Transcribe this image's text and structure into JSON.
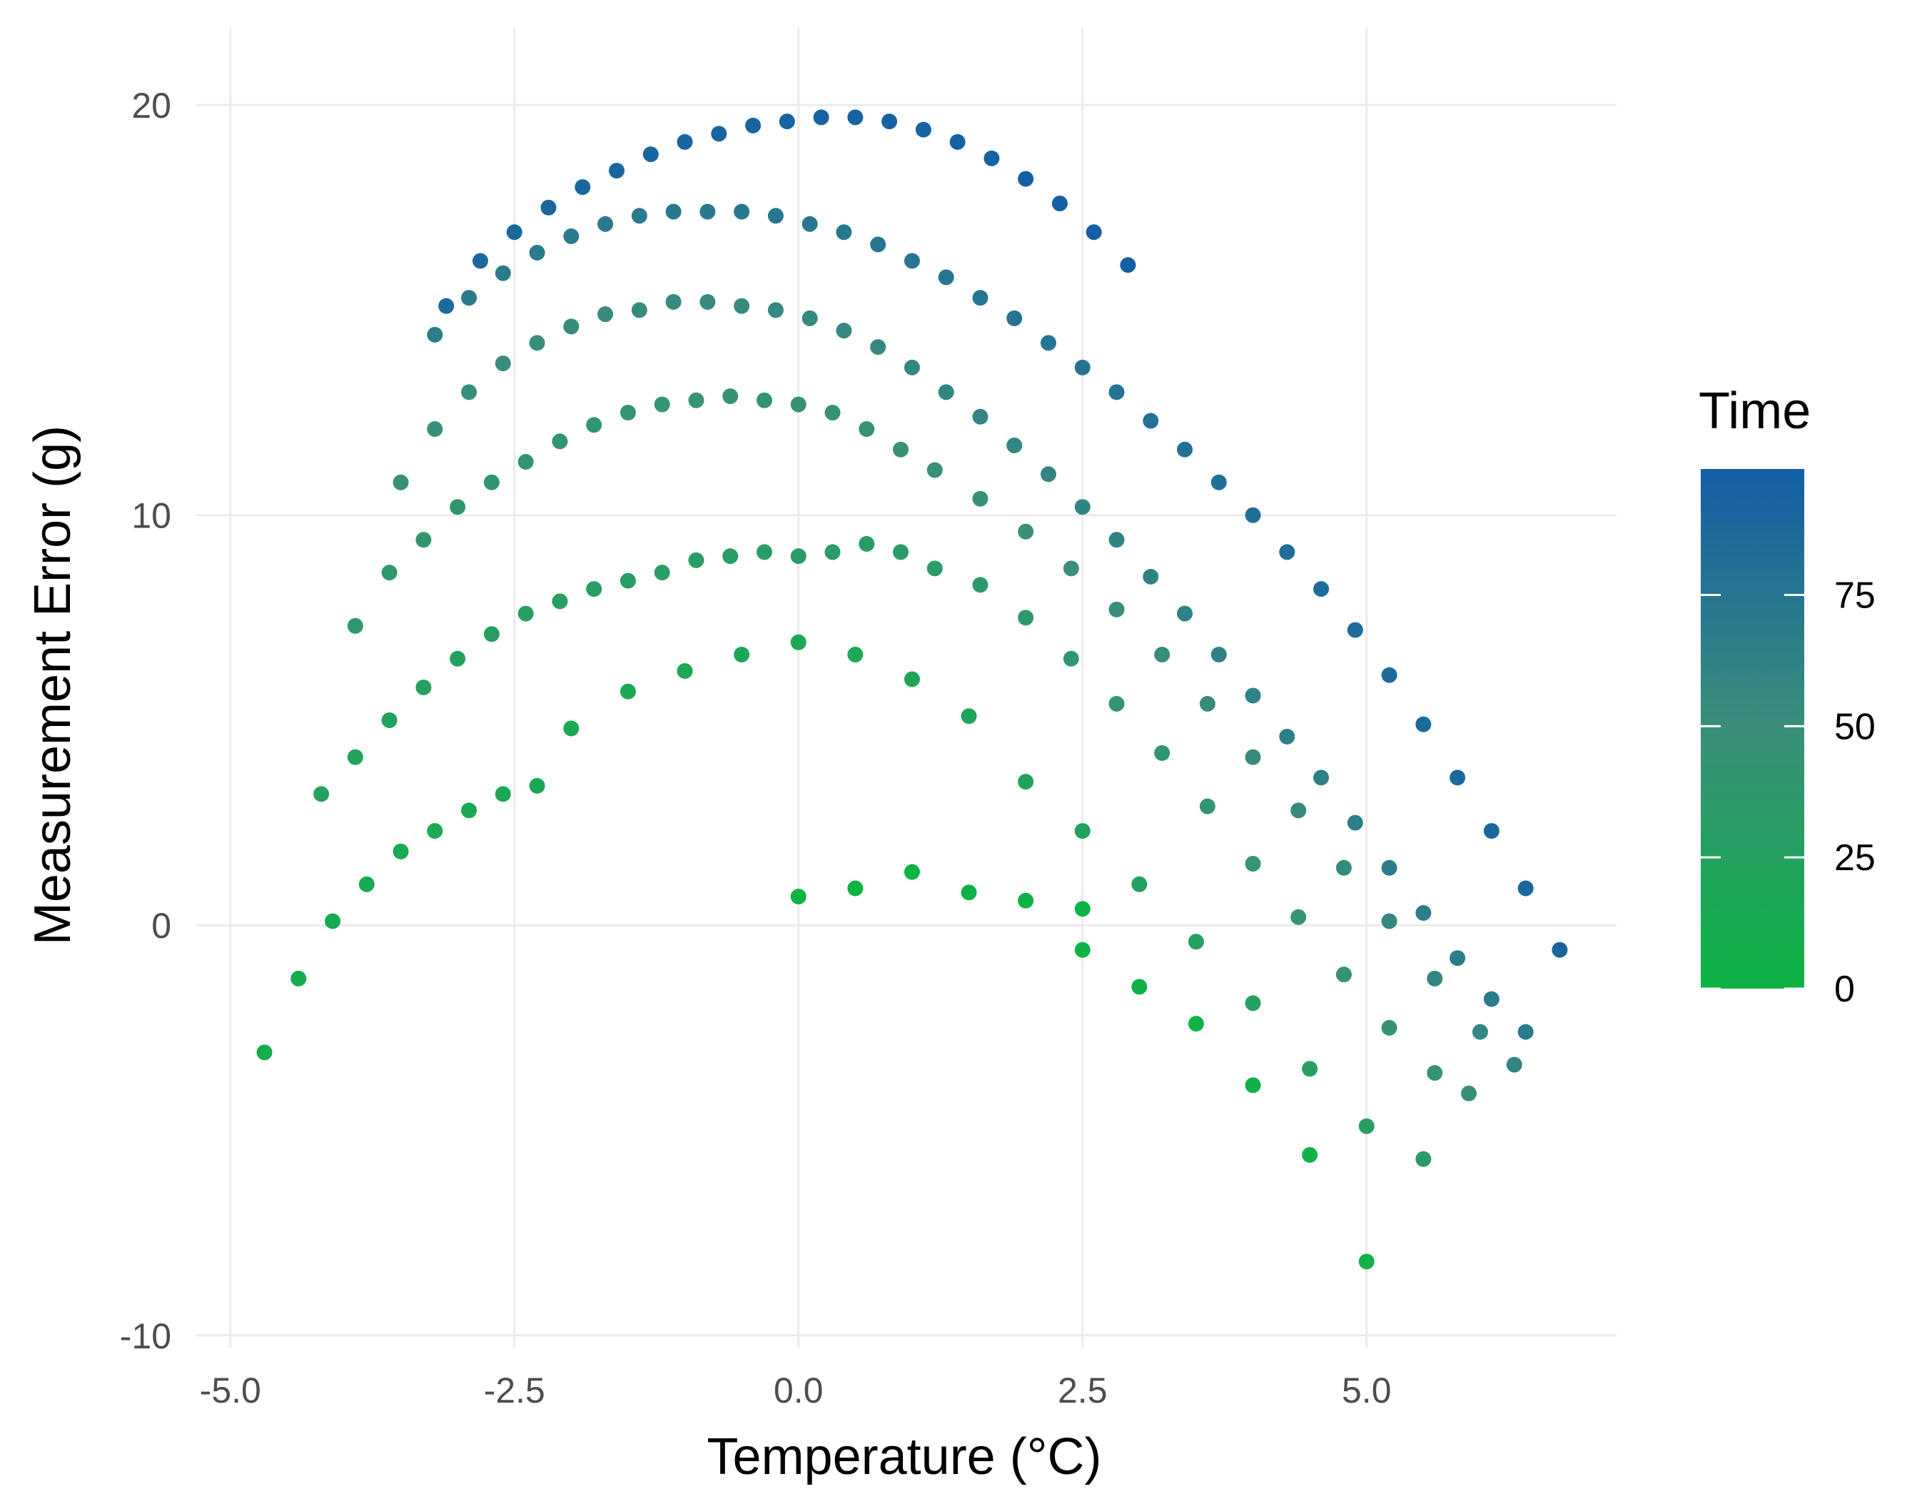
{
  "chart_data": {
    "type": "scatter",
    "xlabel": "Temperature (°C)",
    "ylabel": "Measurement Error (g)",
    "xlim": [
      -5.3,
      7.2
    ],
    "ylim": [
      -10.3,
      21.9
    ],
    "x_ticks": [
      -5.0,
      -2.5,
      0.0,
      2.5,
      5.0
    ],
    "x_tick_labels": [
      "-5.0",
      "-2.5",
      "0.0",
      "2.5",
      "5.0"
    ],
    "y_ticks": [
      -10,
      0,
      10,
      20
    ],
    "y_tick_labels": [
      "-10",
      "0",
      "10",
      "20"
    ],
    "grid": true,
    "legend": {
      "title": "Time",
      "placement": "right",
      "type": "colorbar",
      "range": [
        0,
        99
      ],
      "ticks": [
        0,
        25,
        50,
        75
      ],
      "tick_labels": [
        "0",
        "25",
        "50",
        "75"
      ],
      "color_low": "#0cb443",
      "color_mid": "#3a8f7a",
      "color_high": "#135ea6"
    },
    "curves": [
      {
        "x": [
          0.0,
          0.5,
          1.0,
          1.5,
          2.0,
          2.5
        ],
        "y": [
          0.7,
          0.9,
          1.3,
          0.8,
          0.6,
          0.4
        ],
        "t": [
          1,
          1,
          1,
          1,
          1,
          1
        ]
      },
      {
        "x": [
          2.5,
          3.0,
          3.5,
          4.0,
          4.5,
          5.0
        ],
        "y": [
          -0.6,
          -1.5,
          -2.4,
          -3.9,
          -5.6,
          -8.2
        ],
        "t": [
          2,
          3,
          4,
          5,
          6,
          7
        ]
      },
      {
        "x": [
          -4.7,
          -4.4,
          -4.1,
          -3.8,
          -3.5,
          -3.2,
          -2.9,
          -2.6,
          -2.3
        ],
        "y": [
          -3.1,
          -1.3,
          0.1,
          1.0,
          1.8,
          2.3,
          2.8,
          3.2,
          3.4
        ],
        "t": [
          10,
          12,
          13,
          14,
          14,
          15,
          15,
          16,
          16
        ]
      },
      {
        "x": [
          -2.0,
          -1.5,
          -1.0,
          -0.5,
          0.0,
          0.5,
          1.0,
          1.5,
          2.0,
          2.5
        ],
        "y": [
          4.8,
          5.7,
          6.2,
          6.6,
          6.9,
          6.6,
          6.0,
          5.1,
          3.5,
          2.3
        ],
        "t": [
          14,
          15,
          16,
          17,
          18,
          18,
          19,
          20,
          22,
          24
        ]
      },
      {
        "x": [
          3.0,
          3.5,
          4.0,
          4.5,
          5.0,
          5.5
        ],
        "y": [
          1.0,
          -0.4,
          -1.9,
          -3.5,
          -4.9,
          -5.7
        ],
        "t": [
          26,
          27,
          28,
          29,
          30,
          31
        ]
      },
      {
        "x": [
          -4.2,
          -3.9,
          -3.6,
          -3.3,
          -3.0,
          -2.7,
          -2.4,
          -2.1,
          -1.8,
          -1.5,
          -1.2,
          -0.9,
          -0.6,
          -0.3,
          0.0,
          0.3,
          0.6,
          0.9
        ],
        "y": [
          3.2,
          4.1,
          5.0,
          5.8,
          6.5,
          7.1,
          7.6,
          7.9,
          8.2,
          8.4,
          8.6,
          8.9,
          9.0,
          9.1,
          9.0,
          9.1,
          9.3,
          9.1
        ],
        "t": [
          24,
          25,
          26,
          27,
          27,
          28,
          28,
          29,
          29,
          30,
          30,
          31,
          31,
          32,
          32,
          33,
          33,
          34
        ]
      },
      {
        "x": [
          1.2,
          1.6,
          2.0,
          2.4,
          2.8,
          3.2,
          3.6,
          4.0,
          4.4,
          4.8,
          5.2,
          5.6,
          5.9
        ],
        "y": [
          8.7,
          8.3,
          7.5,
          6.5,
          5.4,
          4.2,
          2.9,
          1.5,
          0.2,
          -1.2,
          -2.5,
          -3.6,
          -4.1
        ],
        "t": [
          35,
          36,
          37,
          38,
          39,
          40,
          41,
          42,
          43,
          44,
          45,
          46,
          47
        ]
      },
      {
        "x": [
          -3.9,
          -3.6,
          -3.3,
          -3.0,
          -2.7,
          -2.4,
          -2.1,
          -1.8,
          -1.5,
          -1.2,
          -0.9,
          -0.6,
          -0.3,
          0.0,
          0.3,
          0.6,
          0.9,
          1.2
        ],
        "y": [
          7.3,
          8.6,
          9.4,
          10.2,
          10.8,
          11.3,
          11.8,
          12.2,
          12.5,
          12.7,
          12.8,
          12.9,
          12.8,
          12.7,
          12.5,
          12.1,
          11.6,
          11.1
        ],
        "t": [
          38,
          39,
          40,
          40,
          41,
          41,
          42,
          42,
          43,
          43,
          44,
          44,
          45,
          45,
          46,
          46,
          47,
          47
        ]
      },
      {
        "x": [
          1.6,
          2.0,
          2.4,
          2.8,
          3.2,
          3.6,
          4.0,
          4.4,
          4.8,
          5.2,
          5.6,
          6.0,
          6.3
        ],
        "y": [
          10.4,
          9.6,
          8.7,
          7.7,
          6.6,
          5.4,
          4.1,
          2.8,
          1.4,
          0.1,
          -1.3,
          -2.6,
          -3.4
        ],
        "t": [
          48,
          49,
          50,
          51,
          52,
          53,
          54,
          55,
          56,
          57,
          58,
          59,
          60
        ]
      },
      {
        "x": [
          -3.5,
          -3.2,
          -2.9,
          -2.6,
          -2.3,
          -2.0,
          -1.7,
          -1.4,
          -1.1,
          -0.8,
          -0.5,
          -0.2,
          0.1,
          0.4,
          0.7,
          1.0
        ],
        "y": [
          10.8,
          12.1,
          13.0,
          13.7,
          14.2,
          14.6,
          14.9,
          15.0,
          15.2,
          15.2,
          15.1,
          15.0,
          14.8,
          14.5,
          14.1,
          13.6
        ],
        "t": [
          50,
          51,
          51,
          52,
          52,
          53,
          53,
          54,
          54,
          55,
          55,
          56,
          56,
          57,
          57,
          58
        ]
      },
      {
        "x": [
          1.3,
          1.6,
          1.9,
          2.2,
          2.5,
          2.8,
          3.1,
          3.4,
          3.7,
          4.0,
          4.3,
          4.6,
          4.9,
          5.2,
          5.5,
          5.8,
          6.1,
          6.4
        ],
        "y": [
          13.0,
          12.4,
          11.7,
          11.0,
          10.2,
          9.4,
          8.5,
          7.6,
          6.6,
          5.6,
          4.6,
          3.6,
          2.5,
          1.4,
          0.3,
          -0.8,
          -1.8,
          -2.6
        ],
        "t": [
          58,
          59,
          59,
          60,
          61,
          61,
          62,
          63,
          63,
          64,
          65,
          65,
          66,
          67,
          67,
          68,
          69,
          70
        ]
      },
      {
        "x": [
          -3.2,
          -2.9,
          -2.6,
          -2.3,
          -2.0,
          -1.7,
          -1.4,
          -1.1,
          -0.8,
          -0.5,
          -0.2,
          0.1,
          0.4,
          0.7,
          1.0,
          1.3,
          1.6,
          1.9,
          2.2,
          2.5,
          2.8,
          3.1
        ],
        "y": [
          14.4,
          15.3,
          15.9,
          16.4,
          16.8,
          17.1,
          17.3,
          17.4,
          17.4,
          17.4,
          17.3,
          17.1,
          16.9,
          16.6,
          16.2,
          15.8,
          15.3,
          14.8,
          14.2,
          13.6,
          13.0,
          12.3
        ],
        "t": [
          68,
          69,
          69,
          70,
          70,
          71,
          71,
          72,
          72,
          73,
          73,
          74,
          74,
          75,
          75,
          76,
          76,
          77,
          77,
          78,
          78,
          79
        ]
      },
      {
        "x": [
          3.4,
          3.7,
          4.0,
          4.3,
          4.6,
          4.9,
          5.2,
          5.5,
          5.8,
          6.1,
          6.4,
          6.7
        ],
        "y": [
          11.6,
          10.8,
          10.0,
          9.1,
          8.2,
          7.2,
          6.1,
          4.9,
          3.6,
          2.3,
          0.9,
          -0.6
        ],
        "t": [
          80,
          81,
          82,
          83,
          84,
          85,
          86,
          87,
          88,
          89,
          90,
          91
        ]
      },
      {
        "x": [
          -3.1,
          -2.8,
          -2.5,
          -2.2,
          -1.9,
          -1.6,
          -1.3,
          -1.0,
          -0.7,
          -0.4,
          -0.1,
          0.2,
          0.5,
          0.8,
          1.1,
          1.4,
          1.7,
          2.0,
          2.3,
          2.6,
          2.9
        ],
        "y": [
          15.1,
          16.2,
          16.9,
          17.5,
          18.0,
          18.4,
          18.8,
          19.1,
          19.3,
          19.5,
          19.6,
          19.7,
          19.7,
          19.6,
          19.4,
          19.1,
          18.7,
          18.2,
          17.6,
          16.9,
          16.1
        ],
        "t": [
          88,
          89,
          89,
          90,
          90,
          91,
          91,
          92,
          92,
          93,
          93,
          94,
          94,
          95,
          95,
          96,
          96,
          97,
          97,
          98,
          98
        ]
      }
    ]
  }
}
